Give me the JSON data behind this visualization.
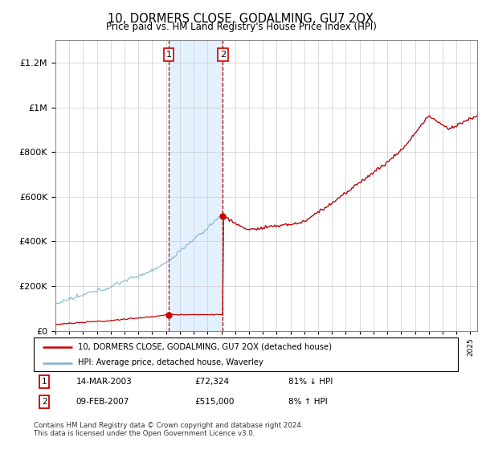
{
  "title": "10, DORMERS CLOSE, GODALMING, GU7 2QX",
  "subtitle": "Price paid vs. HM Land Registry's House Price Index (HPI)",
  "legend_line1": "10, DORMERS CLOSE, GODALMING, GU7 2QX (detached house)",
  "legend_line2": "HPI: Average price, detached house, Waverley",
  "table_rows": [
    {
      "num": "1",
      "date": "14-MAR-2003",
      "price": "£72,324",
      "hpi": "81% ↓ HPI"
    },
    {
      "num": "2",
      "date": "09-FEB-2007",
      "price": "£515,000",
      "hpi": "8% ↑ HPI"
    }
  ],
  "footnote1": "Contains HM Land Registry data © Crown copyright and database right 2024.",
  "footnote2": "This data is licensed under the Open Government Licence v3.0.",
  "red_color": "#cc0000",
  "blue_color": "#7bafd4",
  "shade_color": "#ddeeff",
  "sale1_year": 2003.2,
  "sale1_price": 72324,
  "sale2_year": 2007.1,
  "sale2_price": 515000,
  "ylim": [
    0,
    1300000
  ],
  "yticks": [
    0,
    200000,
    400000,
    600000,
    800000,
    1000000,
    1200000
  ],
  "xlim_start": 1995,
  "xlim_end": 2025.5
}
